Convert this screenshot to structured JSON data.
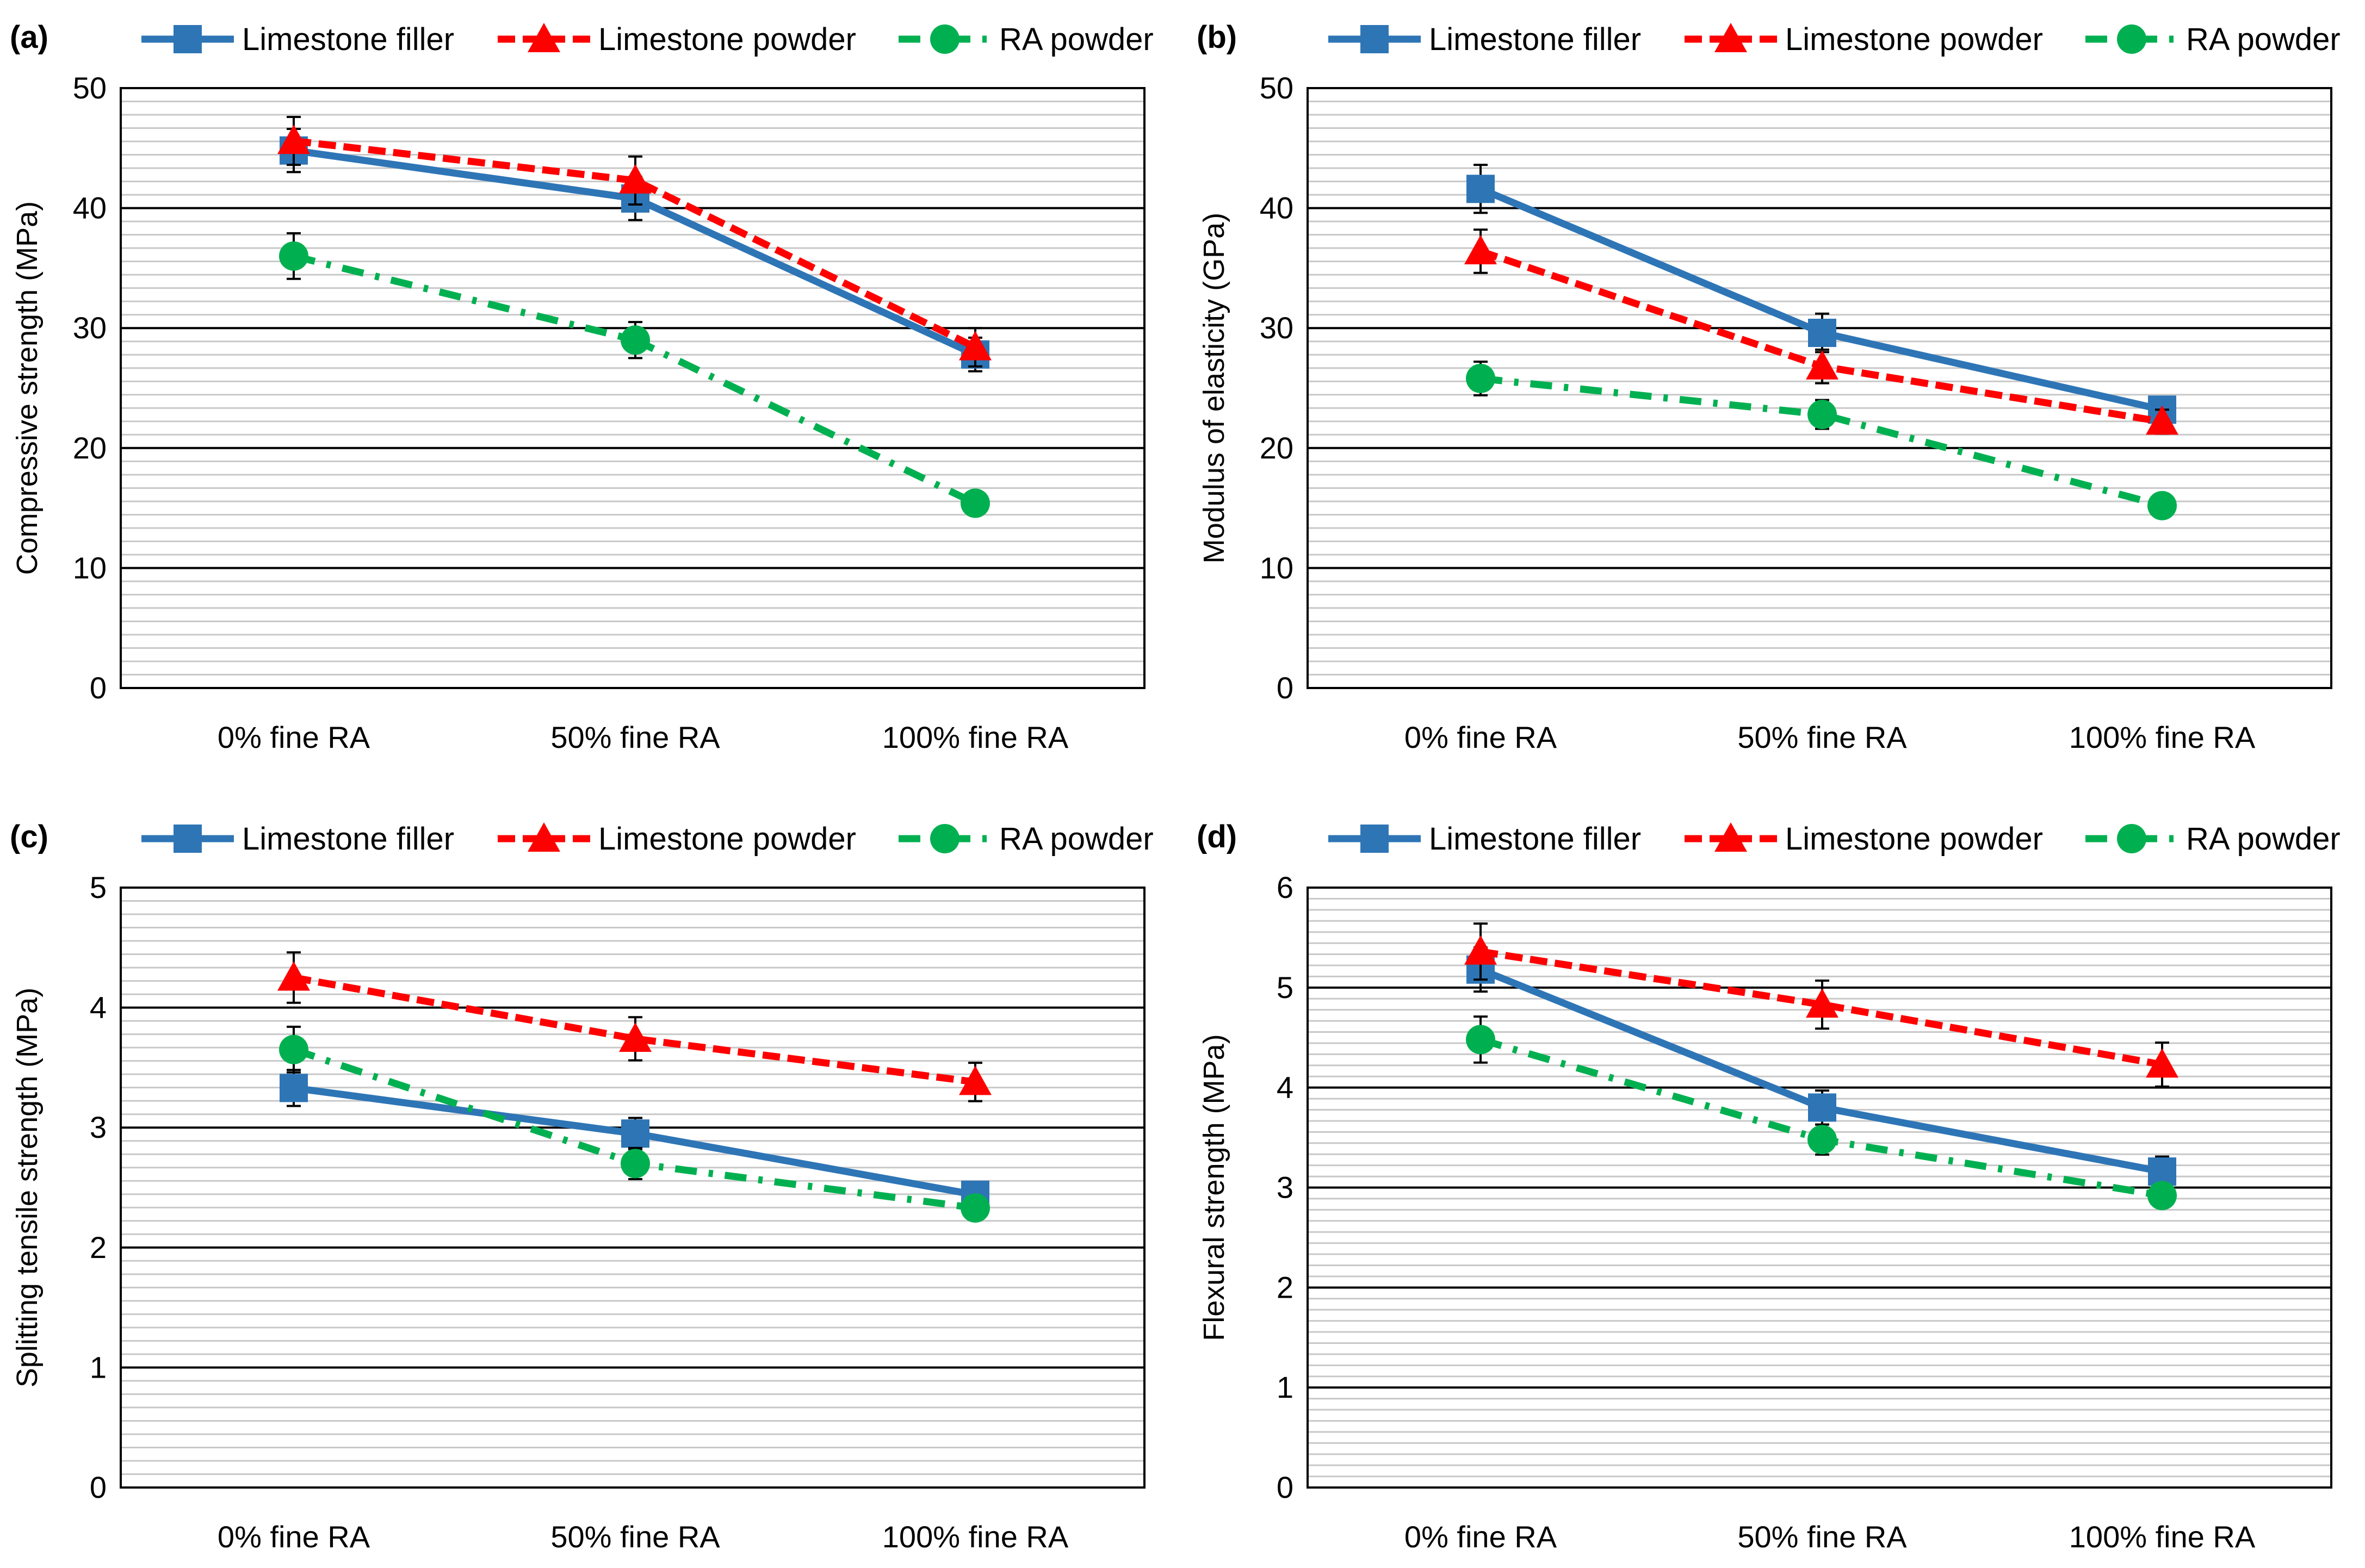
{
  "figure": {
    "legend": [
      "Limestone filler",
      "Limestone powder",
      "RA powder"
    ],
    "colors": {
      "Limestone filler": "#2e75b6",
      "Limestone powder": "#ff0000",
      "RA powder": "#00b050"
    }
  },
  "chart_data": [
    {
      "type": "line",
      "panel": "(a)",
      "ylabel": "Compressive strength (MPa)",
      "categories": [
        "0% fine RA",
        "50% fine RA",
        "100% fine RA"
      ],
      "ylim": [
        0,
        50
      ],
      "yticks": [
        0,
        10,
        20,
        30,
        40,
        50
      ],
      "legend_position": "top",
      "series": [
        {
          "name": "Limestone filler",
          "values": [
            44.8,
            40.8,
            27.8
          ],
          "errors": [
            1.8,
            1.8,
            1.4
          ]
        },
        {
          "name": "Limestone powder",
          "values": [
            45.6,
            42.3,
            28.4
          ],
          "errors": [
            2.0,
            2.0,
            1.6
          ]
        },
        {
          "name": "RA powder",
          "values": [
            36.0,
            29.0,
            15.4
          ],
          "errors": [
            1.9,
            1.5,
            0.6
          ]
        }
      ]
    },
    {
      "type": "line",
      "panel": "(b)",
      "ylabel": "Modulus of elasticity (GPa)",
      "categories": [
        "0% fine RA",
        "50% fine RA",
        "100% fine RA"
      ],
      "ylim": [
        0,
        50
      ],
      "yticks": [
        0,
        10,
        20,
        30,
        40,
        50
      ],
      "legend_position": "top",
      "series": [
        {
          "name": "Limestone filler",
          "values": [
            41.6,
            29.6,
            23.2
          ],
          "errors": [
            2.0,
            1.6,
            1.0
          ]
        },
        {
          "name": "Limestone powder",
          "values": [
            36.4,
            26.8,
            22.2
          ],
          "errors": [
            1.8,
            1.4,
            1.0
          ]
        },
        {
          "name": "RA powder",
          "values": [
            25.8,
            22.8,
            15.2
          ],
          "errors": [
            1.4,
            1.2,
            0.6
          ]
        }
      ]
    },
    {
      "type": "line",
      "panel": "(c)",
      "ylabel": "Splitting tensile strength (MPa)",
      "categories": [
        "0% fine RA",
        "50% fine RA",
        "100% fine RA"
      ],
      "ylim": [
        0,
        5
      ],
      "yticks": [
        0,
        1,
        2,
        3,
        4,
        5
      ],
      "legend_position": "top",
      "series": [
        {
          "name": "Limestone filler",
          "values": [
            3.33,
            2.95,
            2.44
          ],
          "errors": [
            0.15,
            0.13,
            0.08
          ]
        },
        {
          "name": "Limestone powder",
          "values": [
            4.25,
            3.74,
            3.38
          ],
          "errors": [
            0.21,
            0.18,
            0.16
          ]
        },
        {
          "name": "RA powder",
          "values": [
            3.65,
            2.7,
            2.33
          ],
          "errors": [
            0.19,
            0.13,
            0.06
          ]
        }
      ]
    },
    {
      "type": "line",
      "panel": "(d)",
      "ylabel": "Flexural strength (MPa)",
      "categories": [
        "0% fine RA",
        "50% fine RA",
        "100% fine RA"
      ],
      "ylim": [
        0,
        6
      ],
      "yticks": [
        0,
        1,
        2,
        3,
        4,
        5,
        6
      ],
      "legend_position": "top",
      "series": [
        {
          "name": "Limestone filler",
          "values": [
            5.18,
            3.8,
            3.16
          ],
          "errors": [
            0.22,
            0.17,
            0.15
          ]
        },
        {
          "name": "Limestone powder",
          "values": [
            5.36,
            4.83,
            4.23
          ],
          "errors": [
            0.28,
            0.24,
            0.22
          ]
        },
        {
          "name": "RA powder",
          "values": [
            4.48,
            3.48,
            2.92
          ],
          "errors": [
            0.23,
            0.15,
            0.08
          ]
        }
      ]
    }
  ]
}
